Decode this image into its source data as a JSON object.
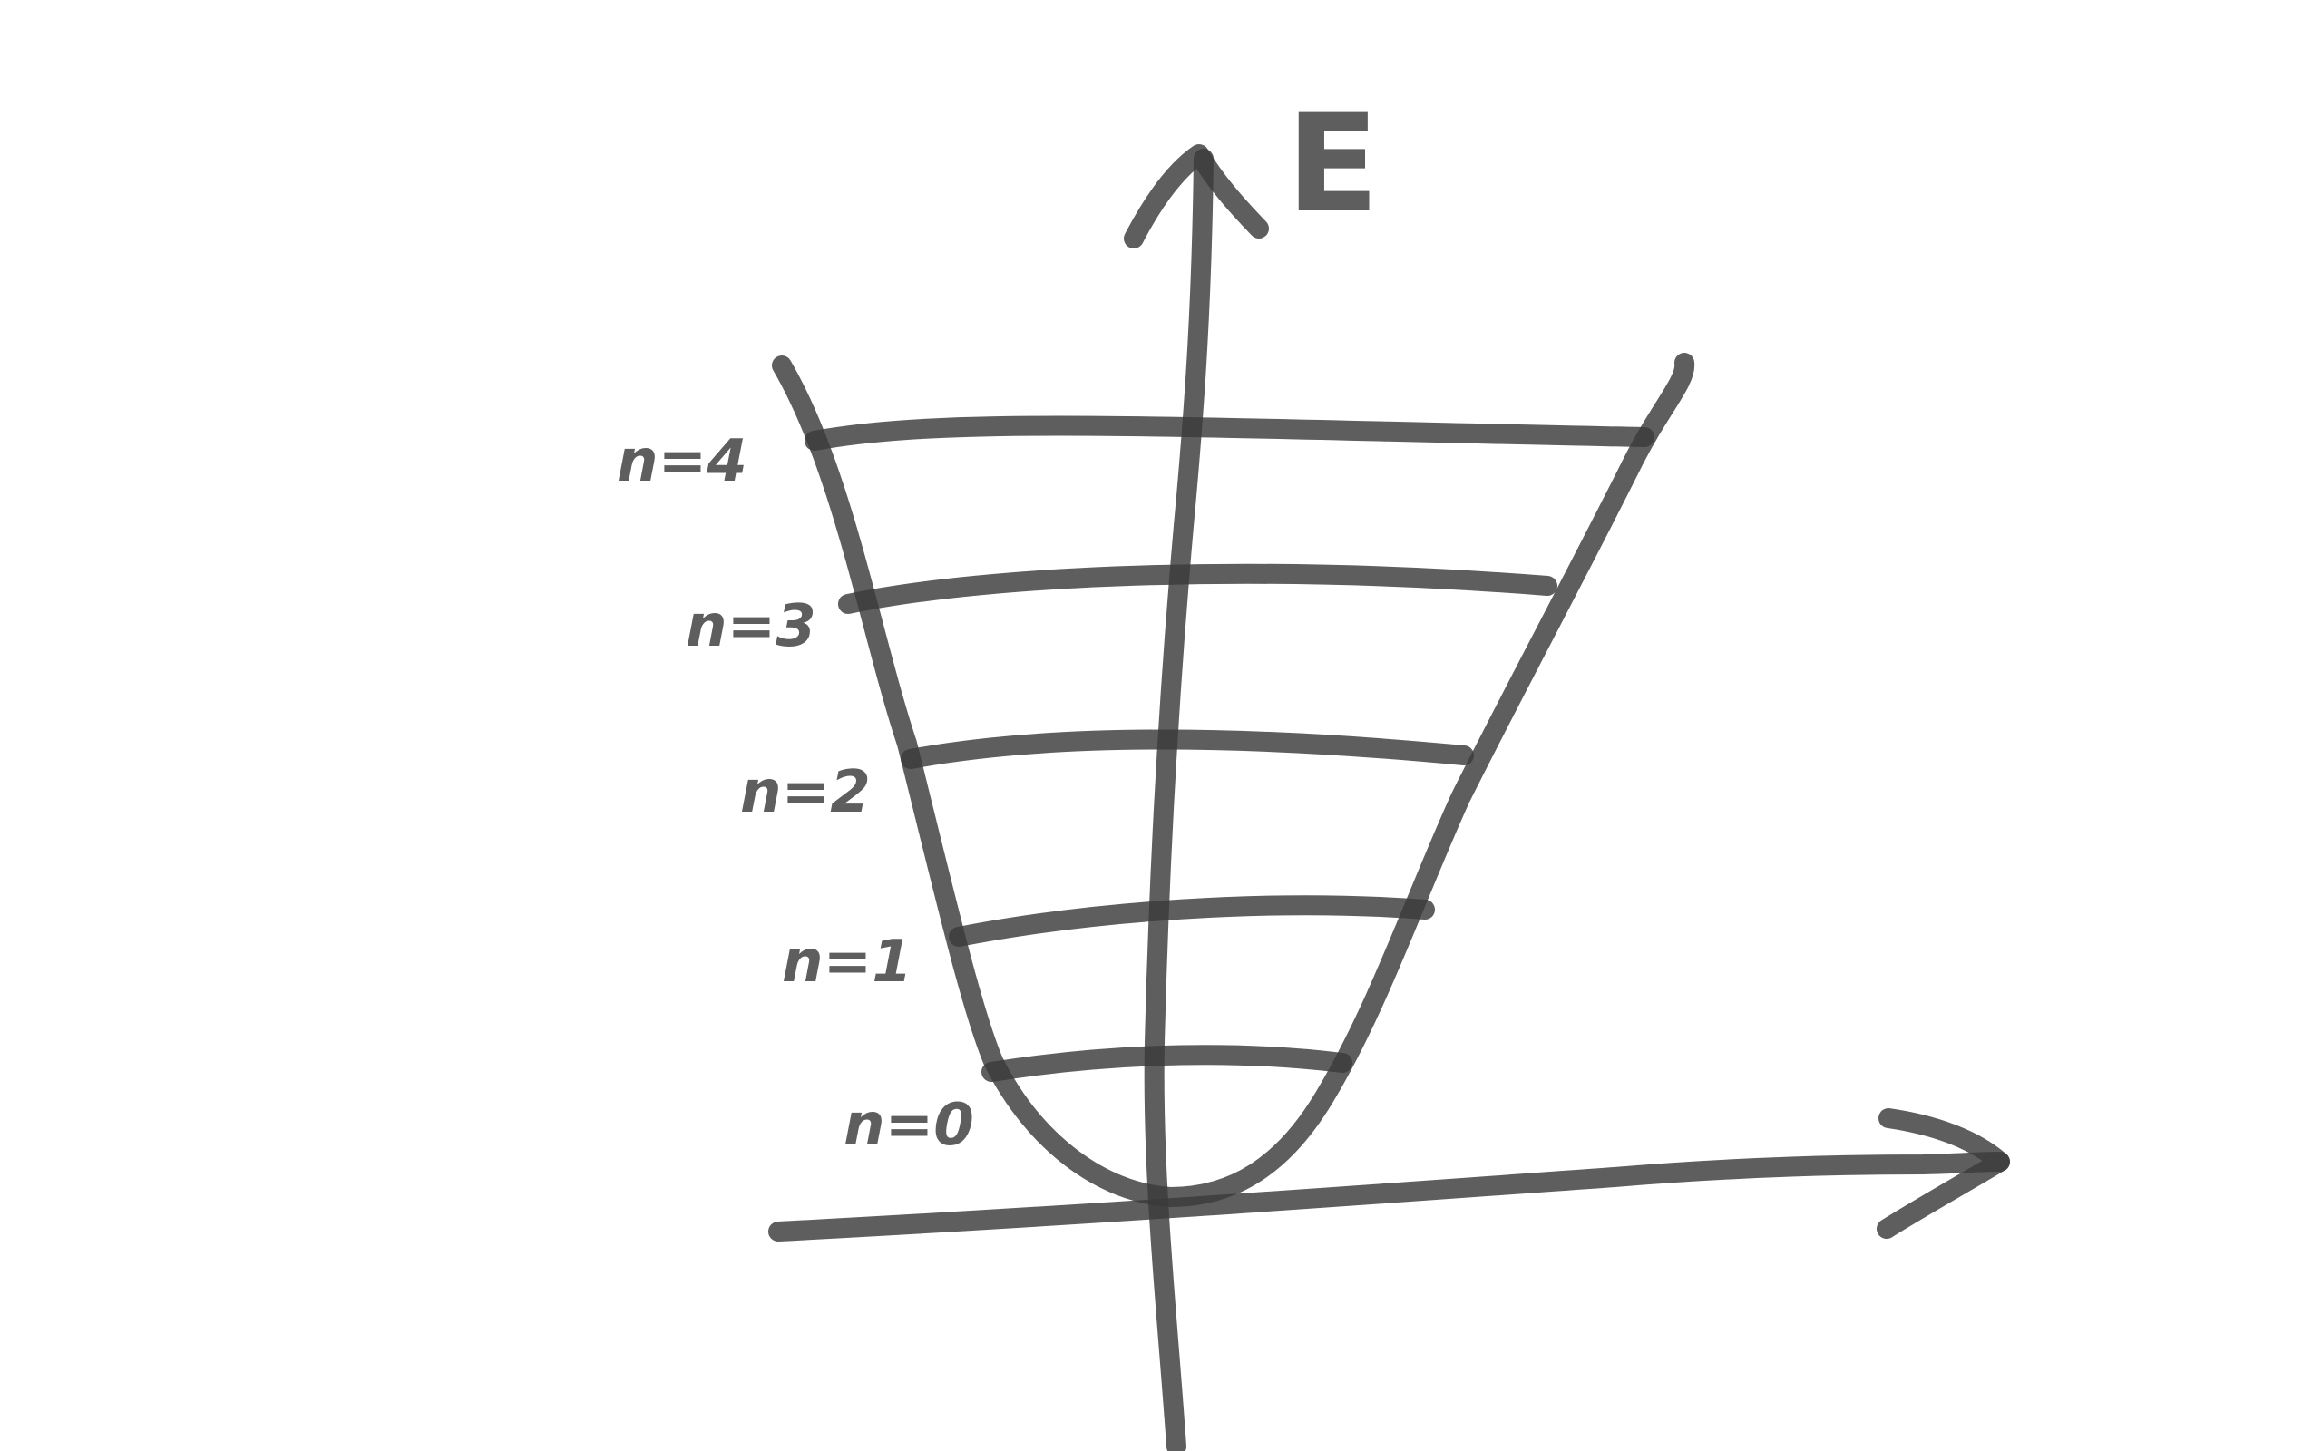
{
  "diagram": {
    "axis_label": "E",
    "levels": [
      {
        "label": "n=0"
      },
      {
        "label": "n=1"
      },
      {
        "label": "n=2"
      },
      {
        "label": "n=3"
      },
      {
        "label": "n=4"
      }
    ]
  },
  "colors": {
    "ink": "#3a3a3a",
    "ink_opacity": "0.82",
    "background": "#ffffff"
  }
}
